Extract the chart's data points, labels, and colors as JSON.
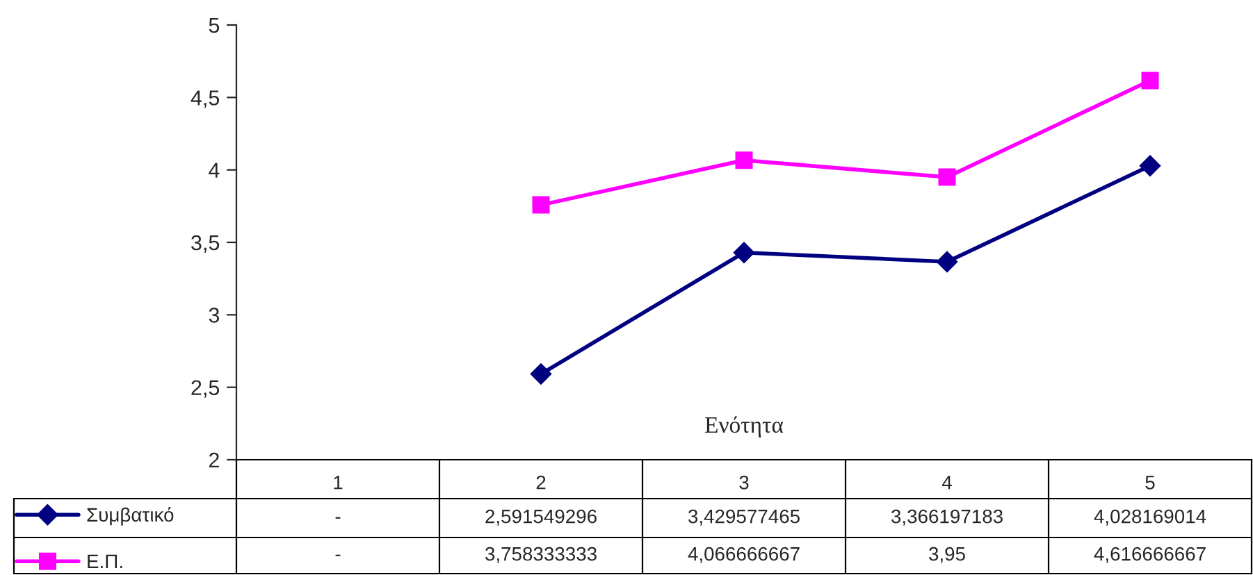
{
  "chart_data": {
    "type": "line",
    "xlabel": "Ενότητα",
    "categories": [
      "1",
      "2",
      "3",
      "4",
      "5"
    ],
    "series": [
      {
        "name": "Συμβατικό",
        "color": "#000080",
        "marker": "diamond",
        "values": [
          null,
          2.591549296,
          3.429577465,
          3.366197183,
          4.028169014
        ],
        "value_labels": [
          "-",
          "2,591549296",
          "3,429577465",
          "3,366197183",
          "4,028169014"
        ]
      },
      {
        "name": "Ε.Π.",
        "color": "#ff00ff",
        "marker": "square",
        "values": [
          null,
          3.758333333,
          4.066666667,
          3.95,
          4.616666667
        ],
        "value_labels": [
          "-",
          "3,758333333",
          "4,066666667",
          "3,95",
          "4,616666667"
        ]
      }
    ],
    "ylim": [
      2,
      5
    ],
    "yticks": [
      2,
      {
        "value": 2.5,
        "label": "2,5"
      },
      3,
      {
        "value": 3.5,
        "label": "3,5"
      },
      4,
      {
        "value": 4.5,
        "label": "4,5"
      },
      5
    ],
    "grid": false,
    "legend": "bottom",
    "line_style": "solid"
  }
}
